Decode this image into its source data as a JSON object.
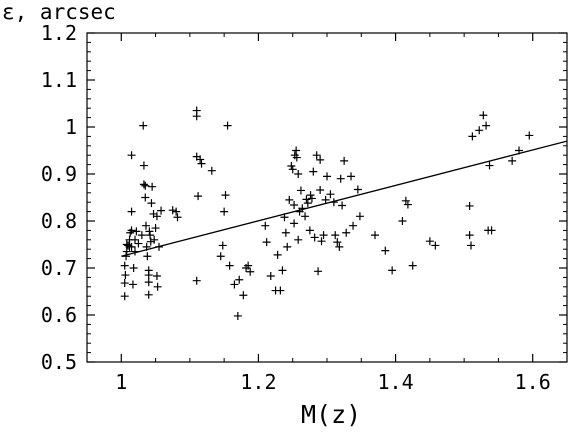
{
  "chart_data": {
    "type": "scatter",
    "title": "",
    "xlabel": "M(z)",
    "ylabel": "ε, arcsec",
    "xlim": [
      0.95,
      1.65
    ],
    "ylim": [
      0.5,
      1.2
    ],
    "x_ticks": [
      1,
      1.2,
      1.4,
      1.6
    ],
    "x_tick_labels": [
      "1",
      "1.2",
      "1.4",
      "1.6"
    ],
    "y_ticks": [
      0.5,
      0.6,
      0.7,
      0.8,
      0.9,
      1.0,
      1.1,
      1.2
    ],
    "y_tick_labels": [
      "0.5",
      "0.6",
      "0.7",
      "0.8",
      "0.9",
      "1",
      "1.1",
      "1.2"
    ],
    "grid": false,
    "series": [
      {
        "marker": "plus",
        "color": "#000000",
        "points": [
          [
            1.005,
            0.64
          ],
          [
            1.005,
            0.668
          ],
          [
            1.006,
            0.685
          ],
          [
            1.005,
            0.705
          ],
          [
            1.007,
            0.725
          ],
          [
            1.008,
            0.735
          ],
          [
            1.008,
            0.75
          ],
          [
            1.01,
            0.748
          ],
          [
            1.012,
            0.745
          ],
          [
            1.012,
            0.76
          ],
          [
            1.013,
            0.775
          ],
          [
            1.015,
            0.78
          ],
          [
            1.015,
            0.745
          ],
          [
            1.015,
            0.94
          ],
          [
            1.015,
            0.82
          ],
          [
            1.017,
            0.665
          ],
          [
            1.018,
            0.7
          ],
          [
            1.02,
            0.735
          ],
          [
            1.02,
            0.76
          ],
          [
            1.022,
            0.778
          ],
          [
            1.025,
            0.752
          ],
          [
            1.03,
            0.77
          ],
          [
            1.032,
            1.003
          ],
          [
            1.033,
            0.918
          ],
          [
            1.033,
            0.878
          ],
          [
            1.035,
            0.875
          ],
          [
            1.035,
            0.85
          ],
          [
            1.036,
            0.79
          ],
          [
            1.037,
            0.745
          ],
          [
            1.038,
            0.725
          ],
          [
            1.04,
            0.695
          ],
          [
            1.04,
            0.685
          ],
          [
            1.04,
            0.67
          ],
          [
            1.04,
            0.643
          ],
          [
            1.041,
            0.778
          ],
          [
            1.042,
            0.77
          ],
          [
            1.043,
            0.756
          ],
          [
            1.044,
            0.838
          ],
          [
            1.045,
            0.873
          ],
          [
            1.047,
            0.815
          ],
          [
            1.048,
            0.76
          ],
          [
            1.05,
            0.785
          ],
          [
            1.052,
            0.683
          ],
          [
            1.052,
            0.81
          ],
          [
            1.053,
            0.66
          ],
          [
            1.055,
            0.745
          ],
          [
            1.058,
            0.822
          ],
          [
            1.075,
            0.823
          ],
          [
            1.08,
            0.82
          ],
          [
            1.082,
            0.808
          ],
          [
            1.11,
            1.035
          ],
          [
            1.11,
            1.023
          ],
          [
            1.11,
            0.937
          ],
          [
            1.112,
            0.853
          ],
          [
            1.115,
            0.931
          ],
          [
            1.117,
            0.922
          ],
          [
            1.11,
            0.673
          ],
          [
            1.132,
            0.907
          ],
          [
            1.145,
            0.725
          ],
          [
            1.148,
            0.748
          ],
          [
            1.15,
            0.82
          ],
          [
            1.152,
            0.855
          ],
          [
            1.155,
            1.003
          ],
          [
            1.158,
            0.705
          ],
          [
            1.165,
            0.665
          ],
          [
            1.17,
            0.598
          ],
          [
            1.172,
            0.675
          ],
          [
            1.178,
            0.642
          ],
          [
            1.182,
            0.7
          ],
          [
            1.185,
            0.705
          ],
          [
            1.188,
            0.692
          ],
          [
            1.21,
            0.79
          ],
          [
            1.212,
            0.755
          ],
          [
            1.218,
            0.683
          ],
          [
            1.225,
            0.652
          ],
          [
            1.228,
            0.728
          ],
          [
            1.232,
            0.652
          ],
          [
            1.235,
            0.695
          ],
          [
            1.238,
            0.808
          ],
          [
            1.24,
            0.775
          ],
          [
            1.242,
            0.745
          ],
          [
            1.245,
            0.845
          ],
          [
            1.248,
            0.917
          ],
          [
            1.25,
            0.91
          ],
          [
            1.252,
            0.834
          ],
          [
            1.252,
            0.795
          ],
          [
            1.253,
            0.94
          ],
          [
            1.255,
            0.95
          ],
          [
            1.256,
            0.935
          ],
          [
            1.258,
            0.9
          ],
          [
            1.258,
            0.76
          ],
          [
            1.26,
            0.82
          ],
          [
            1.262,
            0.865
          ],
          [
            1.264,
            0.827
          ],
          [
            1.268,
            0.81
          ],
          [
            1.27,
            0.846
          ],
          [
            1.272,
            0.838
          ],
          [
            1.275,
            0.78
          ],
          [
            1.276,
            0.855
          ],
          [
            1.278,
            0.848
          ],
          [
            1.28,
            0.905
          ],
          [
            1.282,
            0.765
          ],
          [
            1.285,
            0.94
          ],
          [
            1.287,
            0.693
          ],
          [
            1.29,
            0.93
          ],
          [
            1.29,
            0.866
          ],
          [
            1.292,
            0.757
          ],
          [
            1.295,
            0.77
          ],
          [
            1.298,
            0.845
          ],
          [
            1.3,
            0.895
          ],
          [
            1.305,
            0.857
          ],
          [
            1.31,
            0.84
          ],
          [
            1.312,
            0.77
          ],
          [
            1.315,
            0.755
          ],
          [
            1.318,
            0.745
          ],
          [
            1.32,
            0.89
          ],
          [
            1.322,
            0.833
          ],
          [
            1.325,
            0.928
          ],
          [
            1.328,
            0.775
          ],
          [
            1.335,
            0.895
          ],
          [
            1.338,
            0.79
          ],
          [
            1.345,
            0.867
          ],
          [
            1.348,
            0.81
          ],
          [
            1.37,
            0.77
          ],
          [
            1.385,
            0.737
          ],
          [
            1.395,
            0.695
          ],
          [
            1.41,
            0.8
          ],
          [
            1.415,
            0.843
          ],
          [
            1.418,
            0.835
          ],
          [
            1.425,
            0.705
          ],
          [
            1.45,
            0.757
          ],
          [
            1.458,
            0.748
          ],
          [
            1.508,
            0.832
          ],
          [
            1.508,
            0.77
          ],
          [
            1.51,
            0.748
          ],
          [
            1.512,
            0.98
          ],
          [
            1.522,
            0.993
          ],
          [
            1.528,
            1.025
          ],
          [
            1.532,
            1.003
          ],
          [
            1.535,
            0.78
          ],
          [
            1.537,
            0.918
          ],
          [
            1.54,
            0.78
          ],
          [
            1.57,
            0.928
          ],
          [
            1.58,
            0.95
          ],
          [
            1.595,
            0.982
          ]
        ]
      }
    ],
    "fit_line": {
      "x": [
        1.0,
        1.65
      ],
      "y": [
        0.725,
        0.97
      ]
    }
  },
  "style": {
    "ink": "#000000",
    "background": "#ffffff"
  }
}
